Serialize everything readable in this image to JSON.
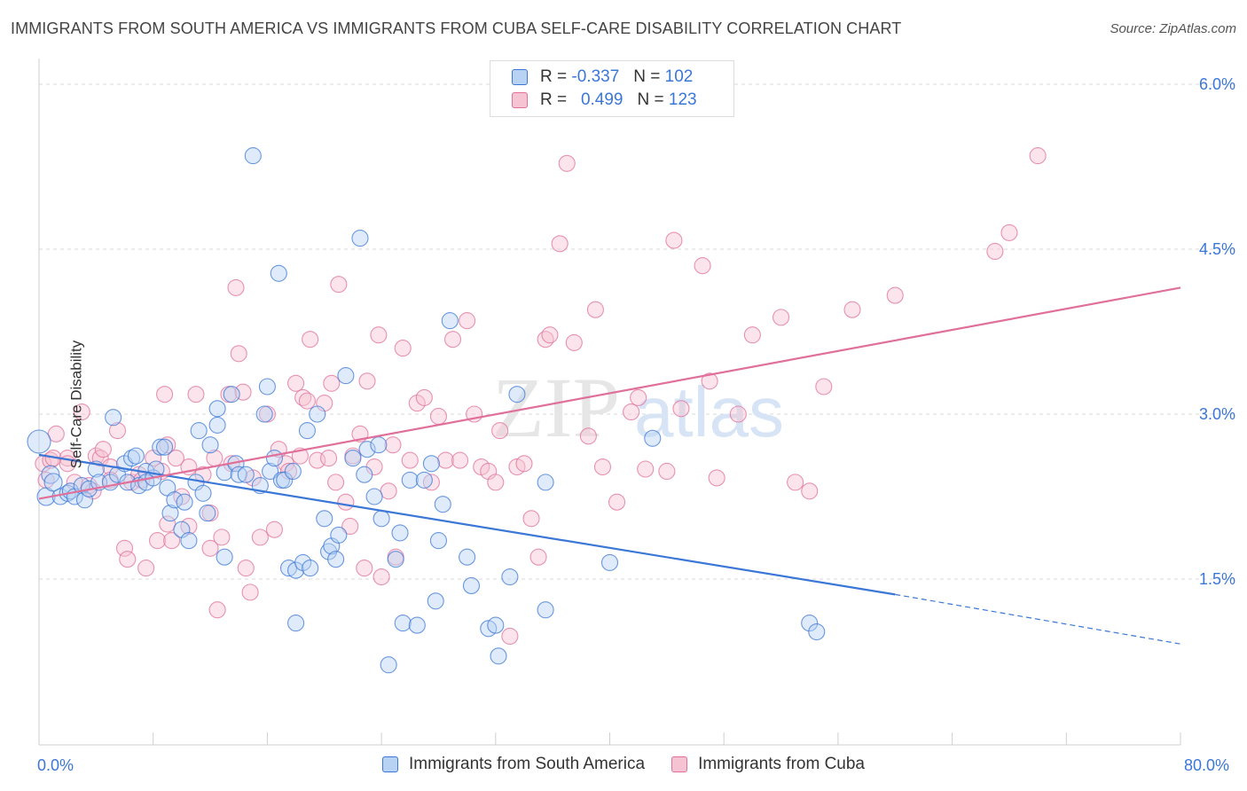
{
  "title": "IMMIGRANTS FROM SOUTH AMERICA VS IMMIGRANTS FROM CUBA SELF-CARE DISABILITY CORRELATION CHART",
  "source": "Source: ZipAtlas.com",
  "watermark": {
    "zip": "ZIP",
    "atlas": "atlas"
  },
  "colors": {
    "blue": "#3b77d6",
    "blue_fill": "#b8d2f3",
    "pink": "#e0709a",
    "pink_fill": "#f6c3d3",
    "grid": "#d9d9d9"
  },
  "legend_top": {
    "rows": [
      {
        "r_label": "R =",
        "r_value": "-0.337",
        "n_label": "N =",
        "n_value": "102"
      },
      {
        "r_label": "R =",
        "r_value": "0.499",
        "n_label": "N =",
        "n_value": "123"
      }
    ]
  },
  "chart_data": {
    "type": "scatter",
    "title": "IMMIGRANTS FROM SOUTH AMERICA VS IMMIGRANTS FROM CUBA SELF-CARE DISABILITY CORRELATION CHART",
    "xlabel": "",
    "ylabel": "Self-Care Disability",
    "xlim": [
      0,
      80
    ],
    "ylim": [
      0,
      6.2
    ],
    "x_tick_labels": [
      "0.0%",
      "80.0%"
    ],
    "y_tick_labels": [
      "1.5%",
      "3.0%",
      "4.5%",
      "6.0%"
    ],
    "y_ticks": [
      1.5,
      3.0,
      4.5,
      6.0
    ],
    "series": [
      {
        "name": "Immigrants from South America",
        "color": "#3b77d6",
        "trend": {
          "x": [
            0,
            60
          ],
          "y": [
            2.63,
            1.36
          ],
          "dashed_to": [
            80,
            0.91
          ]
        },
        "points": [
          [
            0,
            2.75
          ],
          [
            0.5,
            2.25
          ],
          [
            0.8,
            2.45
          ],
          [
            1,
            2.38
          ],
          [
            1.5,
            2.25
          ],
          [
            2,
            2.28
          ],
          [
            2.2,
            2.3
          ],
          [
            2.5,
            2.25
          ],
          [
            3,
            2.35
          ],
          [
            3.2,
            2.22
          ],
          [
            3.5,
            2.32
          ],
          [
            4,
            2.5
          ],
          [
            4.2,
            2.38
          ],
          [
            5,
            2.38
          ],
          [
            5.2,
            2.97
          ],
          [
            5.5,
            2.45
          ],
          [
            6,
            2.55
          ],
          [
            6.2,
            2.38
          ],
          [
            6.5,
            2.6
          ],
          [
            6.8,
            2.62
          ],
          [
            7,
            2.35
          ],
          [
            7.5,
            2.48
          ],
          [
            7.5,
            2.38
          ],
          [
            8,
            2.42
          ],
          [
            8.2,
            2.5
          ],
          [
            8.5,
            2.7
          ],
          [
            8.8,
            2.7
          ],
          [
            9,
            2.33
          ],
          [
            9.2,
            2.1
          ],
          [
            9.5,
            2.22
          ],
          [
            10,
            1.95
          ],
          [
            10.2,
            2.2
          ],
          [
            10.5,
            1.85
          ],
          [
            11,
            2.38
          ],
          [
            11.2,
            2.85
          ],
          [
            11.5,
            2.28
          ],
          [
            11.8,
            2.1
          ],
          [
            12,
            2.72
          ],
          [
            12.5,
            3.05
          ],
          [
            12.5,
            2.9
          ],
          [
            13,
            1.7
          ],
          [
            13,
            2.47
          ],
          [
            13.5,
            3.18
          ],
          [
            13.8,
            2.55
          ],
          [
            14,
            2.45
          ],
          [
            14.5,
            2.45
          ],
          [
            15,
            5.35
          ],
          [
            15.5,
            2.35
          ],
          [
            15.8,
            3.0
          ],
          [
            16,
            3.25
          ],
          [
            16.2,
            2.48
          ],
          [
            16.5,
            2.6
          ],
          [
            16.8,
            4.28
          ],
          [
            17,
            2.4
          ],
          [
            17.2,
            2.4
          ],
          [
            17.5,
            1.6
          ],
          [
            17.8,
            2.48
          ],
          [
            18,
            1.58
          ],
          [
            18,
            1.1
          ],
          [
            18.5,
            1.65
          ],
          [
            18.8,
            2.85
          ],
          [
            19,
            1.6
          ],
          [
            19.5,
            3.0
          ],
          [
            20,
            2.05
          ],
          [
            20.3,
            1.75
          ],
          [
            20.5,
            1.8
          ],
          [
            20.8,
            1.68
          ],
          [
            21,
            1.9
          ],
          [
            21.5,
            3.35
          ],
          [
            22,
            2.6
          ],
          [
            22.5,
            4.6
          ],
          [
            22.8,
            2.45
          ],
          [
            23,
            2.68
          ],
          [
            23.5,
            2.25
          ],
          [
            23.8,
            2.72
          ],
          [
            24,
            2.05
          ],
          [
            24.5,
            0.72
          ],
          [
            25,
            1.68
          ],
          [
            25.3,
            1.92
          ],
          [
            25.5,
            1.1
          ],
          [
            26,
            2.4
          ],
          [
            26.5,
            1.08
          ],
          [
            27,
            2.4
          ],
          [
            27.5,
            2.55
          ],
          [
            27.8,
            1.3
          ],
          [
            28,
            1.85
          ],
          [
            28.3,
            2.18
          ],
          [
            28.8,
            3.85
          ],
          [
            30,
            1.7
          ],
          [
            30.3,
            1.44
          ],
          [
            31.5,
            1.05
          ],
          [
            32,
            1.08
          ],
          [
            32.2,
            0.8
          ],
          [
            33,
            1.52
          ],
          [
            33.5,
            3.18
          ],
          [
            35.5,
            1.22
          ],
          [
            35.5,
            2.38
          ],
          [
            40,
            1.65
          ],
          [
            43,
            2.78
          ],
          [
            54,
            1.1
          ],
          [
            54.5,
            1.02
          ]
        ]
      },
      {
        "name": "Immigrants from Cuba",
        "color": "#e0709a",
        "trend": {
          "x": [
            0,
            80
          ],
          "y": [
            2.23,
            4.15
          ]
        },
        "points": [
          [
            0.3,
            2.55
          ],
          [
            0.5,
            2.4
          ],
          [
            0.8,
            2.58
          ],
          [
            1,
            2.6
          ],
          [
            1.2,
            2.82
          ],
          [
            2,
            2.6
          ],
          [
            2,
            2.55
          ],
          [
            2.5,
            2.38
          ],
          [
            3,
            3.02
          ],
          [
            3.5,
            2.35
          ],
          [
            3.8,
            2.3
          ],
          [
            4,
            2.62
          ],
          [
            4.3,
            2.6
          ],
          [
            4.5,
            2.68
          ],
          [
            5,
            2.52
          ],
          [
            5,
            2.4
          ],
          [
            5.5,
            2.85
          ],
          [
            6,
            1.78
          ],
          [
            6.2,
            1.68
          ],
          [
            6.5,
            2.38
          ],
          [
            7,
            2.45
          ],
          [
            7.2,
            2.4
          ],
          [
            7.5,
            1.6
          ],
          [
            8,
            2.6
          ],
          [
            8.3,
            1.85
          ],
          [
            8.6,
            2.48
          ],
          [
            8.8,
            3.18
          ],
          [
            9,
            2.0
          ],
          [
            9,
            2.72
          ],
          [
            9.3,
            1.85
          ],
          [
            9.6,
            2.6
          ],
          [
            10,
            2.25
          ],
          [
            10.5,
            2.52
          ],
          [
            10.5,
            1.98
          ],
          [
            11,
            3.18
          ],
          [
            11.5,
            2.45
          ],
          [
            12,
            1.78
          ],
          [
            12,
            2.1
          ],
          [
            12.3,
            2.6
          ],
          [
            12.5,
            1.22
          ],
          [
            12.8,
            1.88
          ],
          [
            13.3,
            3.18
          ],
          [
            13.5,
            2.55
          ],
          [
            13.8,
            4.15
          ],
          [
            14,
            3.55
          ],
          [
            14.3,
            3.2
          ],
          [
            14.5,
            1.6
          ],
          [
            14.8,
            1.38
          ],
          [
            15,
            2.42
          ],
          [
            15.5,
            1.88
          ],
          [
            16,
            3.0
          ],
          [
            16.5,
            1.95
          ],
          [
            16.8,
            2.68
          ],
          [
            17.3,
            2.55
          ],
          [
            17.5,
            2.48
          ],
          [
            18,
            3.28
          ],
          [
            18.3,
            2.62
          ],
          [
            18.5,
            3.15
          ],
          [
            18.8,
            3.12
          ],
          [
            19,
            3.68
          ],
          [
            19.5,
            2.58
          ],
          [
            20,
            3.1
          ],
          [
            20.3,
            2.6
          ],
          [
            20.5,
            3.28
          ],
          [
            20.8,
            2.38
          ],
          [
            21,
            4.18
          ],
          [
            21.5,
            2.2
          ],
          [
            21.8,
            1.98
          ],
          [
            22,
            2.62
          ],
          [
            22.5,
            2.82
          ],
          [
            22.8,
            1.6
          ],
          [
            23,
            3.3
          ],
          [
            23.5,
            2.52
          ],
          [
            23.8,
            3.72
          ],
          [
            24,
            1.52
          ],
          [
            24.5,
            2.3
          ],
          [
            24.8,
            2.72
          ],
          [
            25,
            1.7
          ],
          [
            25.5,
            3.6
          ],
          [
            26,
            2.58
          ],
          [
            26.5,
            3.1
          ],
          [
            27,
            3.15
          ],
          [
            27.5,
            2.38
          ],
          [
            28,
            2.98
          ],
          [
            28.5,
            2.58
          ],
          [
            29,
            3.68
          ],
          [
            29.5,
            2.58
          ],
          [
            30,
            3.85
          ],
          [
            30.5,
            3.0
          ],
          [
            31,
            2.52
          ],
          [
            31.5,
            2.48
          ],
          [
            32,
            2.38
          ],
          [
            32.3,
            2.85
          ],
          [
            33,
            0.98
          ],
          [
            33.5,
            2.52
          ],
          [
            34,
            2.55
          ],
          [
            34.5,
            2.05
          ],
          [
            35,
            1.7
          ],
          [
            35.5,
            3.68
          ],
          [
            35.8,
            3.72
          ],
          [
            36.5,
            4.55
          ],
          [
            37,
            5.28
          ],
          [
            37.5,
            3.65
          ],
          [
            38.5,
            2.8
          ],
          [
            39,
            3.95
          ],
          [
            39.5,
            2.52
          ],
          [
            40.5,
            2.2
          ],
          [
            41.5,
            3.02
          ],
          [
            42,
            3.15
          ],
          [
            42.5,
            2.5
          ],
          [
            44,
            2.48
          ],
          [
            44.5,
            4.58
          ],
          [
            45,
            3.05
          ],
          [
            46.5,
            4.35
          ],
          [
            47,
            3.3
          ],
          [
            47.5,
            2.42
          ],
          [
            49,
            3.0
          ],
          [
            50,
            3.72
          ],
          [
            52,
            3.88
          ],
          [
            53,
            2.38
          ],
          [
            54,
            2.3
          ],
          [
            55,
            3.25
          ],
          [
            57,
            3.95
          ],
          [
            60,
            4.08
          ],
          [
            67,
            4.48
          ],
          [
            68,
            4.65
          ],
          [
            70,
            5.35
          ]
        ]
      }
    ]
  },
  "bottom_legend": [
    "Immigrants from South America",
    "Immigrants from Cuba"
  ]
}
